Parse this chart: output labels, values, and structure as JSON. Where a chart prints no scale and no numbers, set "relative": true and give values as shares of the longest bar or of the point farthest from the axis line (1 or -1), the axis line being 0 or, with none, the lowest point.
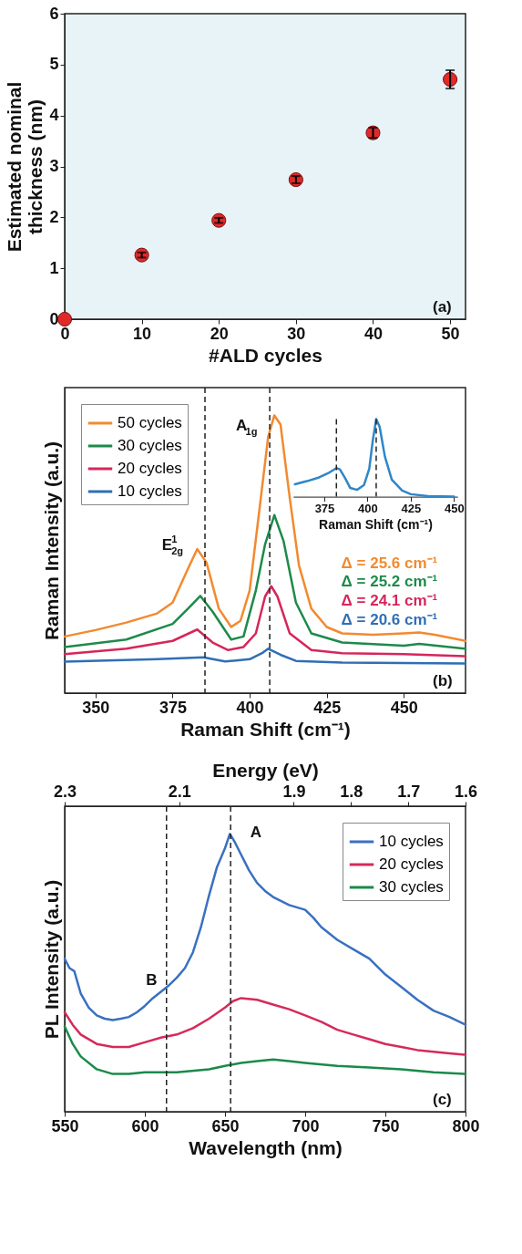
{
  "chart_data": [
    {
      "type": "scatter",
      "xlabel": "#ALD cycles",
      "ylabel": "Estimated nominal thickness (nm)",
      "x": [
        0,
        10,
        20,
        30,
        40,
        50
      ],
      "series": [
        {
          "color": "#e02a2a",
          "values": [
            0,
            1.26,
            1.94,
            2.74,
            3.66,
            4.71
          ],
          "errors": [
            null,
            0.05,
            0.05,
            0.07,
            0.1,
            0.18
          ]
        }
      ],
      "xlim": [
        0,
        52
      ],
      "ylim": [
        0,
        6
      ],
      "xticks": [
        0,
        10,
        20,
        30,
        40,
        50
      ],
      "yticks": [
        0,
        1,
        2,
        3,
        4,
        5,
        6
      ],
      "marker": "circle",
      "grid": false,
      "legend": false,
      "annotations": [
        "(a)"
      ]
    },
    {
      "type": "line",
      "relative": true,
      "xlabel": "Raman Shift (cm⁻¹)",
      "ylabel": "Raman Intensity (a.u.)",
      "xlim": [
        340,
        470
      ],
      "xticks": [
        350,
        375,
        400,
        425,
        450
      ],
      "tick_labels": "x",
      "legend": "top left",
      "grid": false,
      "line_style": "solid",
      "marker": "none",
      "series": [
        {
          "name": "50 cycles",
          "color": "#f28a30",
          "x": [
            340,
            350,
            360,
            370,
            375,
            380,
            383,
            386,
            390,
            394,
            397,
            400,
            403,
            406,
            408,
            410,
            413,
            416,
            420,
            425,
            430,
            440,
            450,
            455,
            460,
            470
          ],
          "values": [
            0.204,
            0.227,
            0.254,
            0.287,
            0.326,
            0.448,
            0.519,
            0.47,
            0.304,
            0.238,
            0.26,
            0.37,
            0.646,
            0.923,
            1.0,
            0.967,
            0.702,
            0.459,
            0.304,
            0.238,
            0.215,
            0.21,
            0.215,
            0.218,
            0.21,
            0.188
          ]
        },
        {
          "name": "30 cycles",
          "color": "#1e8a4a",
          "x": [
            340,
            360,
            375,
            380,
            384,
            388,
            394,
            398,
            402,
            405,
            408,
            411,
            415,
            420,
            430,
            450,
            455,
            470
          ],
          "values": [
            0.166,
            0.193,
            0.249,
            0.304,
            0.35,
            0.293,
            0.193,
            0.204,
            0.37,
            0.536,
            0.641,
            0.547,
            0.326,
            0.215,
            0.182,
            0.171,
            0.177,
            0.16
          ]
        },
        {
          "name": "20 cycles",
          "color": "#d6265a",
          "x": [
            340,
            360,
            375,
            383,
            388,
            393,
            398,
            402,
            405,
            407,
            409,
            413,
            420,
            430,
            450,
            470
          ],
          "values": [
            0.14,
            0.16,
            0.188,
            0.229,
            0.182,
            0.155,
            0.166,
            0.215,
            0.348,
            0.385,
            0.348,
            0.215,
            0.155,
            0.144,
            0.14,
            0.133
          ]
        },
        {
          "name": "10 cycles",
          "color": "#2f6fb5",
          "x": [
            340,
            370,
            385,
            392,
            400,
            404,
            406,
            410,
            415,
            430,
            470
          ],
          "values": [
            0.113,
            0.122,
            0.129,
            0.114,
            0.122,
            0.144,
            0.16,
            0.138,
            0.116,
            0.11,
            0.107
          ]
        }
      ],
      "ref_lines": [
        {
          "axis": "x",
          "value": 385.5,
          "line_style": "dashed",
          "color": "#222222"
        },
        {
          "axis": "x",
          "value": 406.5,
          "line_style": "dashed",
          "color": "#222222"
        }
      ],
      "annotations": [
        "E$^{1}$$_{2g}$",
        "A$_{1g}$",
        "Δ = 25.6 cm⁻¹",
        "Δ = 25.2 cm⁻¹",
        "Δ = 24.1 cm⁻¹",
        "Δ = 20.6 cm⁻¹",
        "(b)"
      ]
    },
    {
      "type": "line",
      "relative": true,
      "xlabel": "Raman Shift (cm⁻¹)",
      "xlim": [
        357,
        452
      ],
      "xticks": [
        375,
        400,
        425,
        450
      ],
      "tick_labels": "x",
      "grid": false,
      "line_style": "solid",
      "marker": "none",
      "series": [
        {
          "color": "#2f86c8",
          "x": [
            358,
            365,
            372,
            378,
            382,
            384,
            387,
            390,
            394,
            398,
            401,
            403,
            405,
            407,
            410,
            414,
            420,
            425,
            435,
            450
          ],
          "values": [
            0.16,
            0.2,
            0.248,
            0.312,
            0.368,
            0.352,
            0.24,
            0.112,
            0.088,
            0.152,
            0.36,
            0.72,
            1.0,
            0.9,
            0.52,
            0.22,
            0.08,
            0.032,
            0.008,
            0
          ]
        }
      ],
      "ref_lines": [
        {
          "axis": "x",
          "value": 382,
          "line_style": "dashed",
          "color": "#222222"
        },
        {
          "axis": "x",
          "value": 405,
          "line_style": "dashed",
          "color": "#222222"
        }
      ]
    },
    {
      "type": "line",
      "relative": true,
      "xlabel": "Wavelength (nm)",
      "ylabel": "PL Intensity (a.u.)",
      "x2label": "Energy (eV)",
      "xlim": [
        550,
        800
      ],
      "xticks": [
        550,
        600,
        650,
        700,
        750,
        800
      ],
      "x2lim": [
        2.3,
        1.6
      ],
      "x2ticks": [
        2.3,
        2.1,
        1.9,
        1.8,
        1.7,
        1.6
      ],
      "tick_labels": "x",
      "legend": "top right",
      "grid": false,
      "line_style": "solid",
      "marker": "none",
      "series": [
        {
          "name": "10 cycles",
          "color": "#3a70c0",
          "x": [
            550,
            553,
            556,
            560,
            565,
            570,
            575,
            580,
            585,
            590,
            595,
            600,
            605,
            610,
            615,
            620,
            625,
            630,
            635,
            640,
            645,
            650,
            653,
            656,
            660,
            665,
            670,
            675,
            680,
            690,
            700,
            705,
            710,
            720,
            730,
            740,
            750,
            760,
            770,
            780,
            790,
            800
          ],
          "values": [
            0.551,
            0.517,
            0.506,
            0.426,
            0.375,
            0.347,
            0.335,
            0.33,
            0.335,
            0.341,
            0.358,
            0.381,
            0.409,
            0.432,
            0.455,
            0.483,
            0.517,
            0.574,
            0.665,
            0.778,
            0.881,
            0.949,
            1.0,
            0.972,
            0.926,
            0.869,
            0.824,
            0.795,
            0.773,
            0.744,
            0.727,
            0.699,
            0.665,
            0.619,
            0.585,
            0.551,
            0.494,
            0.449,
            0.403,
            0.364,
            0.341,
            0.313
          ]
        },
        {
          "name": "20 cycles",
          "color": "#d62a5a",
          "x": [
            550,
            555,
            560,
            570,
            580,
            590,
            600,
            610,
            620,
            630,
            640,
            650,
            655,
            660,
            670,
            680,
            690,
            700,
            710,
            720,
            730,
            740,
            750,
            760,
            770,
            780,
            790,
            800
          ],
          "values": [
            0.358,
            0.313,
            0.278,
            0.244,
            0.233,
            0.233,
            0.25,
            0.267,
            0.278,
            0.301,
            0.335,
            0.375,
            0.398,
            0.409,
            0.403,
            0.386,
            0.369,
            0.347,
            0.324,
            0.295,
            0.278,
            0.261,
            0.244,
            0.233,
            0.222,
            0.216,
            0.21,
            0.205
          ]
        },
        {
          "name": "30 cycles",
          "color": "#1a8a4a",
          "x": [
            550,
            555,
            560,
            570,
            580,
            590,
            600,
            620,
            640,
            650,
            660,
            670,
            680,
            690,
            700,
            720,
            740,
            760,
            780,
            800
          ],
          "values": [
            0.307,
            0.244,
            0.199,
            0.153,
            0.136,
            0.136,
            0.142,
            0.142,
            0.153,
            0.165,
            0.176,
            0.182,
            0.188,
            0.182,
            0.176,
            0.165,
            0.159,
            0.153,
            0.142,
            0.136
          ]
        }
      ],
      "ref_lines": [
        {
          "axis": "x",
          "value": 613.5,
          "line_style": "dashed",
          "color": "#222222"
        },
        {
          "axis": "x",
          "value": 653.5,
          "line_style": "dashed",
          "color": "#222222"
        }
      ],
      "annotations": [
        "A",
        "B",
        "(c)"
      ]
    }
  ]
}
